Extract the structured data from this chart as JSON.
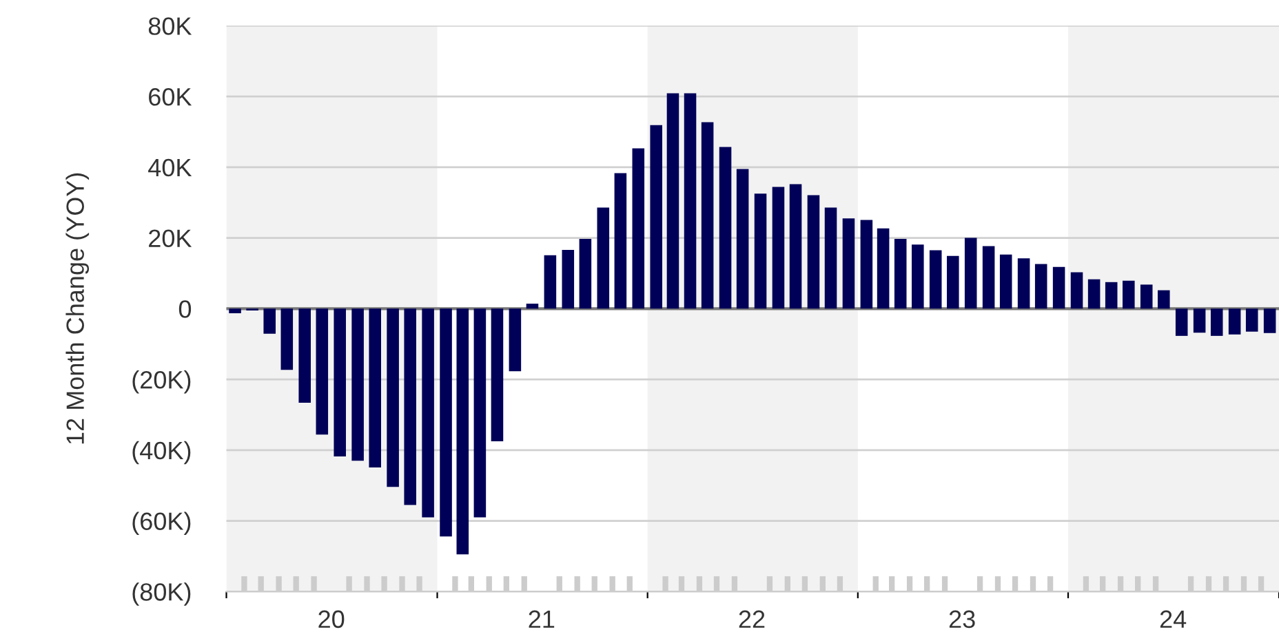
{
  "chart_data": {
    "type": "bar",
    "ylabel": "12 Month Change (YOY)",
    "x": [
      "2020-01-16",
      "2020-02-15",
      "2020-03-16",
      "2020-04-15",
      "2020-05-16",
      "2020-06-15",
      "2020-07-16",
      "2020-08-16",
      "2020-09-15",
      "2020-10-16",
      "2020-11-15",
      "2020-12-16",
      "2021-01-16",
      "2021-02-14",
      "2021-03-16",
      "2021-04-15",
      "2021-05-16",
      "2021-06-15",
      "2021-07-16",
      "2021-08-16",
      "2021-09-15",
      "2021-10-16",
      "2021-11-15",
      "2021-12-16",
      "2022-01-16",
      "2022-02-14",
      "2022-03-16",
      "2022-04-15",
      "2022-05-16",
      "2022-06-15",
      "2022-07-16",
      "2022-08-16",
      "2022-09-15",
      "2022-10-16",
      "2022-11-15",
      "2022-12-16",
      "2023-01-16",
      "2023-02-14",
      "2023-03-16",
      "2023-04-15",
      "2023-05-16",
      "2023-06-15",
      "2023-07-16",
      "2023-08-16",
      "2023-09-15",
      "2023-10-16",
      "2023-11-15",
      "2023-12-16",
      "2024-01-16",
      "2024-02-15",
      "2024-03-16",
      "2024-04-15",
      "2024-05-16",
      "2024-06-15",
      "2024-07-16",
      "2024-08-16",
      "2024-09-15",
      "2024-10-16",
      "2024-11-15",
      "2024-12-16"
    ],
    "values": [
      -1300,
      -500,
      -7100,
      -17300,
      -26600,
      -35600,
      -41800,
      -43000,
      -44900,
      -50400,
      -55500,
      -59000,
      -64400,
      -69500,
      -59000,
      -37500,
      -17700,
      1400,
      15100,
      16600,
      19700,
      28600,
      38300,
      45300,
      51900,
      60900,
      60900,
      52700,
      45700,
      39500,
      32500,
      34400,
      35200,
      32100,
      28600,
      25500,
      25100,
      22700,
      19700,
      18100,
      16500,
      14900,
      20000,
      17700,
      15300,
      14200,
      12600,
      11800,
      10300,
      8300,
      7500,
      7900,
      6800,
      5200,
      -7700,
      -6800,
      -7700,
      -7300,
      -6500,
      -6900
    ],
    "color": "#000058",
    "ylim": [
      -80000,
      80000
    ],
    "yticks": [
      {
        "value": -80000,
        "label": "(80K)"
      },
      {
        "value": -60000,
        "label": "(60K)"
      },
      {
        "value": -40000,
        "label": "(40K)"
      },
      {
        "value": -20000,
        "label": "(20K)"
      },
      0,
      {
        "value": 20000,
        "label": "20K"
      },
      {
        "value": 40000,
        "label": "40K"
      },
      {
        "value": 60000,
        "label": "60K"
      },
      {
        "value": 80000,
        "label": "80K"
      }
    ],
    "xlim": [
      "2020-01-01",
      "2025-01-01"
    ],
    "xticks": [
      {
        "value": "2020-01-01",
        "label": null
      },
      {
        "value": "2020-07-01",
        "label": "20"
      },
      {
        "value": "2021-01-01",
        "label": null
      },
      {
        "value": "2021-07-01",
        "label": "21"
      },
      {
        "value": "2022-01-01",
        "label": null
      },
      {
        "value": "2022-07-01",
        "label": "22"
      },
      {
        "value": "2023-01-01",
        "label": null
      },
      {
        "value": "2023-07-01",
        "label": "23"
      },
      {
        "value": "2024-01-01",
        "label": null
      },
      {
        "value": "2024-07-01",
        "label": "24"
      },
      {
        "value": "2025-01-01",
        "label": null
      }
    ],
    "bands": [
      {
        "axis": "x",
        "from": "2020-01-01",
        "to": "2021-01-01",
        "color": "#f2f2f2"
      },
      {
        "axis": "x",
        "from": "2022-01-01",
        "to": "2023-01-01",
        "color": "#f2f2f2"
      },
      {
        "axis": "x",
        "from": "2024-01-01",
        "to": "2025-01-01",
        "color": "#f2f2f2"
      }
    ],
    "grid": "y",
    "legend": false
  }
}
